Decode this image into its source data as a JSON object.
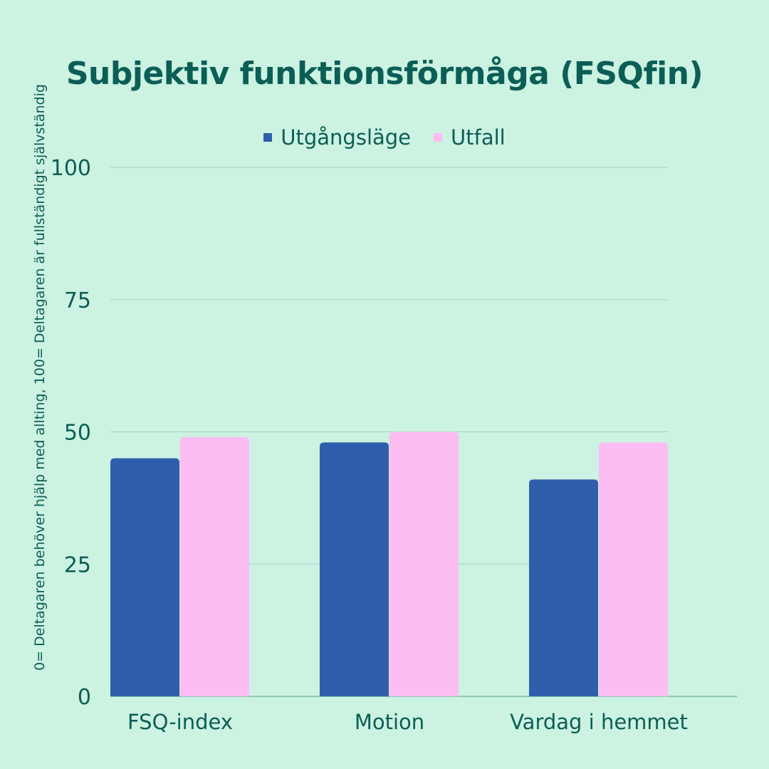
{
  "chart_data": {
    "type": "bar",
    "title": "Subjektiv funktionsförmåga (FSQfin)",
    "ylabel": "0= Deltagaren behöver hjälp med allting, 100= Deltagaren är fullständigt självständig",
    "xlabel": "",
    "categories": [
      "FSQ-index",
      "Motion",
      "Vardag i hemmet"
    ],
    "series": [
      {
        "name": "Utgångsläge",
        "values": [
          45,
          48,
          41
        ],
        "color": "#2e5eab"
      },
      {
        "name": "Utfall",
        "values": [
          49,
          50,
          48
        ],
        "color": "#fcbdf2"
      }
    ],
    "ylim": [
      0,
      100
    ],
    "yticks": [
      0,
      25,
      50,
      75,
      100
    ],
    "grid": true,
    "legend_position": "top-center",
    "colors": {
      "background": "#ccf2e2",
      "text": "#0b5e55",
      "grid": "#9fd4c0"
    }
  }
}
